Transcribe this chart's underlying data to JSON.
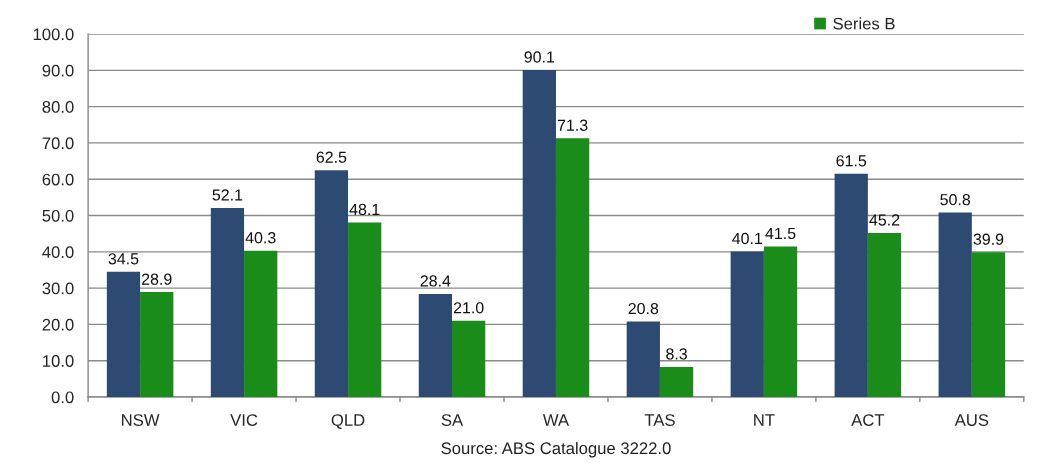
{
  "chart_data": {
    "type": "bar",
    "categories": [
      "NSW",
      "VIC",
      "QLD",
      "SA",
      "WA",
      "TAS",
      "NT",
      "ACT",
      "AUS"
    ],
    "series": [
      {
        "color": "#2d4a72",
        "values": [
          34.5,
          52.1,
          62.5,
          28.4,
          90.1,
          20.8,
          40.1,
          61.5,
          50.8
        ],
        "value_labels": [
          "34.5",
          "52.1",
          "62.5",
          "28.4",
          "90.1",
          "20.8",
          "40.1",
          "61.5",
          "50.8"
        ]
      },
      {
        "name": "Series B",
        "color": "#1a8c1a",
        "values": [
          28.9,
          40.3,
          48.1,
          21.0,
          71.3,
          8.3,
          41.5,
          45.2,
          39.9
        ],
        "value_labels": [
          "28.9",
          "40.3",
          "48.1",
          "21.0",
          "71.3",
          "8.3",
          "41.5",
          "45.2",
          "39.9"
        ]
      }
    ],
    "ylim": [
      0,
      100
    ],
    "yticks": [
      {
        "value": 0,
        "label": "0.0"
      },
      {
        "value": 10,
        "label": "10.0"
      },
      {
        "value": 20,
        "label": "20.0"
      },
      {
        "value": 30,
        "label": "30.0"
      },
      {
        "value": 40,
        "label": "40.0"
      },
      {
        "value": 50,
        "label": "50.0"
      },
      {
        "value": 60,
        "label": "60.0"
      },
      {
        "value": 70,
        "label": "70.0"
      },
      {
        "value": 80,
        "label": "80.0"
      },
      {
        "value": 90,
        "label": "90.0"
      },
      {
        "value": 100,
        "label": "100.0"
      }
    ],
    "grid": "y",
    "legend": "top right",
    "annotations": [
      "Source: ABS Catalogue 3222.0"
    ]
  }
}
